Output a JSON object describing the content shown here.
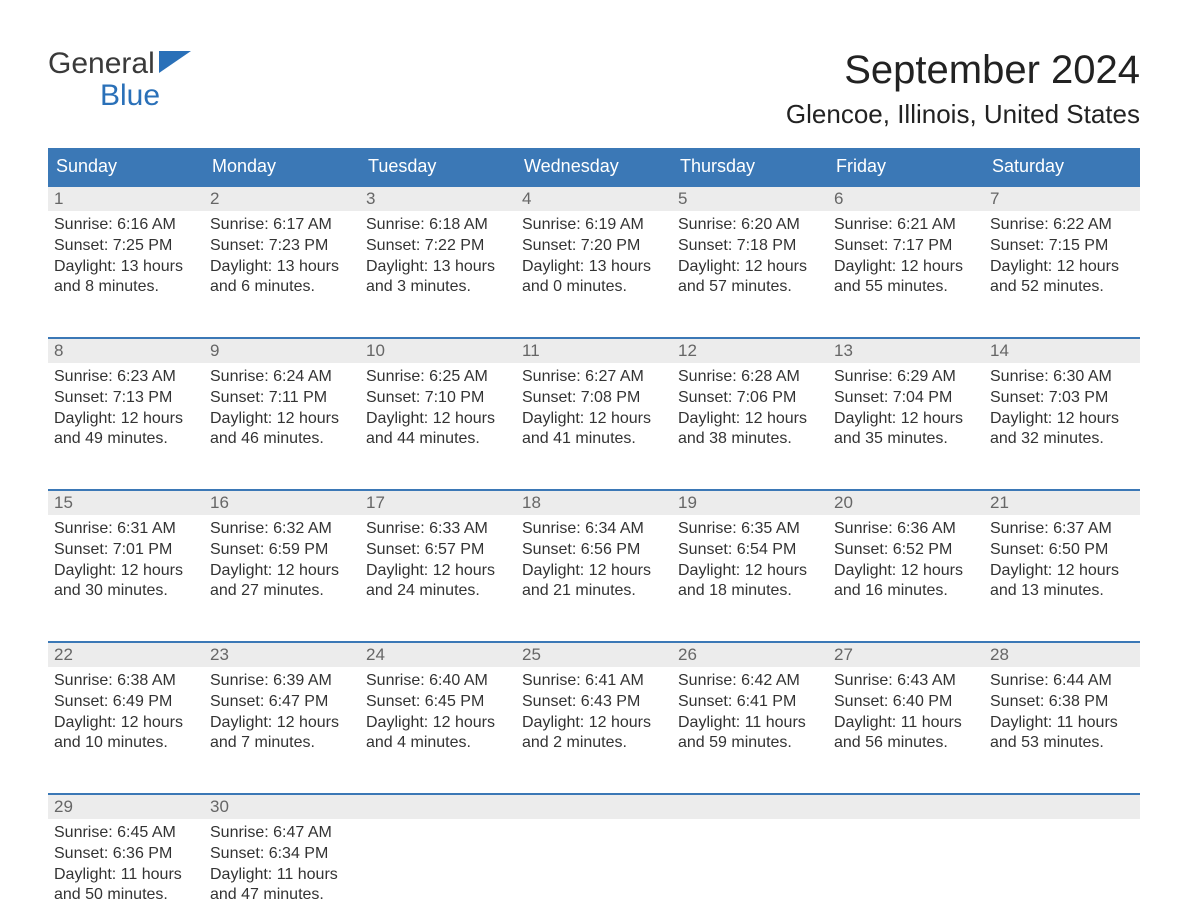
{
  "logo": {
    "line1": "General",
    "line2": "Blue"
  },
  "title": "September 2024",
  "location": "Glencoe, Illinois, United States",
  "colors": {
    "header_bg": "#3b78b6",
    "header_text": "#ffffff",
    "daynum_bg": "#ececec",
    "daynum_text": "#666666",
    "body_text": "#333333",
    "rule": "#3b78b6",
    "logo_blue": "#2a70b8",
    "page_bg": "#ffffff"
  },
  "typography": {
    "title_fontsize": 40,
    "location_fontsize": 26,
    "weekday_fontsize": 18,
    "daynum_fontsize": 17,
    "body_fontsize": 16,
    "logo_fontsize": 30
  },
  "weekdays": [
    "Sunday",
    "Monday",
    "Tuesday",
    "Wednesday",
    "Thursday",
    "Friday",
    "Saturday"
  ],
  "weeks": [
    [
      {
        "n": "1",
        "sunrise": "Sunrise: 6:16 AM",
        "sunset": "Sunset: 7:25 PM",
        "d1": "Daylight: 13 hours",
        "d2": "and 8 minutes."
      },
      {
        "n": "2",
        "sunrise": "Sunrise: 6:17 AM",
        "sunset": "Sunset: 7:23 PM",
        "d1": "Daylight: 13 hours",
        "d2": "and 6 minutes."
      },
      {
        "n": "3",
        "sunrise": "Sunrise: 6:18 AM",
        "sunset": "Sunset: 7:22 PM",
        "d1": "Daylight: 13 hours",
        "d2": "and 3 minutes."
      },
      {
        "n": "4",
        "sunrise": "Sunrise: 6:19 AM",
        "sunset": "Sunset: 7:20 PM",
        "d1": "Daylight: 13 hours",
        "d2": "and 0 minutes."
      },
      {
        "n": "5",
        "sunrise": "Sunrise: 6:20 AM",
        "sunset": "Sunset: 7:18 PM",
        "d1": "Daylight: 12 hours",
        "d2": "and 57 minutes."
      },
      {
        "n": "6",
        "sunrise": "Sunrise: 6:21 AM",
        "sunset": "Sunset: 7:17 PM",
        "d1": "Daylight: 12 hours",
        "d2": "and 55 minutes."
      },
      {
        "n": "7",
        "sunrise": "Sunrise: 6:22 AM",
        "sunset": "Sunset: 7:15 PM",
        "d1": "Daylight: 12 hours",
        "d2": "and 52 minutes."
      }
    ],
    [
      {
        "n": "8",
        "sunrise": "Sunrise: 6:23 AM",
        "sunset": "Sunset: 7:13 PM",
        "d1": "Daylight: 12 hours",
        "d2": "and 49 minutes."
      },
      {
        "n": "9",
        "sunrise": "Sunrise: 6:24 AM",
        "sunset": "Sunset: 7:11 PM",
        "d1": "Daylight: 12 hours",
        "d2": "and 46 minutes."
      },
      {
        "n": "10",
        "sunrise": "Sunrise: 6:25 AM",
        "sunset": "Sunset: 7:10 PM",
        "d1": "Daylight: 12 hours",
        "d2": "and 44 minutes."
      },
      {
        "n": "11",
        "sunrise": "Sunrise: 6:27 AM",
        "sunset": "Sunset: 7:08 PM",
        "d1": "Daylight: 12 hours",
        "d2": "and 41 minutes."
      },
      {
        "n": "12",
        "sunrise": "Sunrise: 6:28 AM",
        "sunset": "Sunset: 7:06 PM",
        "d1": "Daylight: 12 hours",
        "d2": "and 38 minutes."
      },
      {
        "n": "13",
        "sunrise": "Sunrise: 6:29 AM",
        "sunset": "Sunset: 7:04 PM",
        "d1": "Daylight: 12 hours",
        "d2": "and 35 minutes."
      },
      {
        "n": "14",
        "sunrise": "Sunrise: 6:30 AM",
        "sunset": "Sunset: 7:03 PM",
        "d1": "Daylight: 12 hours",
        "d2": "and 32 minutes."
      }
    ],
    [
      {
        "n": "15",
        "sunrise": "Sunrise: 6:31 AM",
        "sunset": "Sunset: 7:01 PM",
        "d1": "Daylight: 12 hours",
        "d2": "and 30 minutes."
      },
      {
        "n": "16",
        "sunrise": "Sunrise: 6:32 AM",
        "sunset": "Sunset: 6:59 PM",
        "d1": "Daylight: 12 hours",
        "d2": "and 27 minutes."
      },
      {
        "n": "17",
        "sunrise": "Sunrise: 6:33 AM",
        "sunset": "Sunset: 6:57 PM",
        "d1": "Daylight: 12 hours",
        "d2": "and 24 minutes."
      },
      {
        "n": "18",
        "sunrise": "Sunrise: 6:34 AM",
        "sunset": "Sunset: 6:56 PM",
        "d1": "Daylight: 12 hours",
        "d2": "and 21 minutes."
      },
      {
        "n": "19",
        "sunrise": "Sunrise: 6:35 AM",
        "sunset": "Sunset: 6:54 PM",
        "d1": "Daylight: 12 hours",
        "d2": "and 18 minutes."
      },
      {
        "n": "20",
        "sunrise": "Sunrise: 6:36 AM",
        "sunset": "Sunset: 6:52 PM",
        "d1": "Daylight: 12 hours",
        "d2": "and 16 minutes."
      },
      {
        "n": "21",
        "sunrise": "Sunrise: 6:37 AM",
        "sunset": "Sunset: 6:50 PM",
        "d1": "Daylight: 12 hours",
        "d2": "and 13 minutes."
      }
    ],
    [
      {
        "n": "22",
        "sunrise": "Sunrise: 6:38 AM",
        "sunset": "Sunset: 6:49 PM",
        "d1": "Daylight: 12 hours",
        "d2": "and 10 minutes."
      },
      {
        "n": "23",
        "sunrise": "Sunrise: 6:39 AM",
        "sunset": "Sunset: 6:47 PM",
        "d1": "Daylight: 12 hours",
        "d2": "and 7 minutes."
      },
      {
        "n": "24",
        "sunrise": "Sunrise: 6:40 AM",
        "sunset": "Sunset: 6:45 PM",
        "d1": "Daylight: 12 hours",
        "d2": "and 4 minutes."
      },
      {
        "n": "25",
        "sunrise": "Sunrise: 6:41 AM",
        "sunset": "Sunset: 6:43 PM",
        "d1": "Daylight: 12 hours",
        "d2": "and 2 minutes."
      },
      {
        "n": "26",
        "sunrise": "Sunrise: 6:42 AM",
        "sunset": "Sunset: 6:41 PM",
        "d1": "Daylight: 11 hours",
        "d2": "and 59 minutes."
      },
      {
        "n": "27",
        "sunrise": "Sunrise: 6:43 AM",
        "sunset": "Sunset: 6:40 PM",
        "d1": "Daylight: 11 hours",
        "d2": "and 56 minutes."
      },
      {
        "n": "28",
        "sunrise": "Sunrise: 6:44 AM",
        "sunset": "Sunset: 6:38 PM",
        "d1": "Daylight: 11 hours",
        "d2": "and 53 minutes."
      }
    ],
    [
      {
        "n": "29",
        "sunrise": "Sunrise: 6:45 AM",
        "sunset": "Sunset: 6:36 PM",
        "d1": "Daylight: 11 hours",
        "d2": "and 50 minutes."
      },
      {
        "n": "30",
        "sunrise": "Sunrise: 6:47 AM",
        "sunset": "Sunset: 6:34 PM",
        "d1": "Daylight: 11 hours",
        "d2": "and 47 minutes."
      },
      {
        "n": "",
        "sunrise": "",
        "sunset": "",
        "d1": "",
        "d2": ""
      },
      {
        "n": "",
        "sunrise": "",
        "sunset": "",
        "d1": "",
        "d2": ""
      },
      {
        "n": "",
        "sunrise": "",
        "sunset": "",
        "d1": "",
        "d2": ""
      },
      {
        "n": "",
        "sunrise": "",
        "sunset": "",
        "d1": "",
        "d2": ""
      },
      {
        "n": "",
        "sunrise": "",
        "sunset": "",
        "d1": "",
        "d2": ""
      }
    ]
  ]
}
